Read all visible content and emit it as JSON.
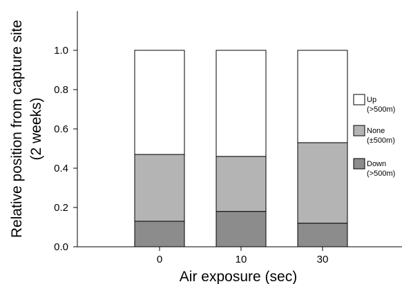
{
  "chart_data": {
    "type": "bar",
    "stacked": true,
    "categories": [
      "0",
      "10",
      "30"
    ],
    "series": [
      {
        "name": "Down",
        "name_sub": "(>500m)",
        "color": "#8c8c8c",
        "values": [
          0.13,
          0.18,
          0.12
        ]
      },
      {
        "name": "None",
        "name_sub": "(±500m)",
        "color": "#b4b4b4",
        "values": [
          0.34,
          0.28,
          0.41
        ]
      },
      {
        "name": "Up",
        "name_sub": "(>500m)",
        "color": "#ffffff",
        "values": [
          0.53,
          0.54,
          0.47
        ]
      }
    ],
    "xlabel": "Air exposure (sec)",
    "ylabel_line1": "Relative position from capture site",
    "ylabel_line2": "(2 weeks)",
    "ylim": [
      0,
      1.2
    ],
    "yticks": [
      "0.0",
      "0.2",
      "0.4",
      "0.6",
      "0.8",
      "1.0"
    ],
    "legend_position": "right",
    "grid": false
  }
}
